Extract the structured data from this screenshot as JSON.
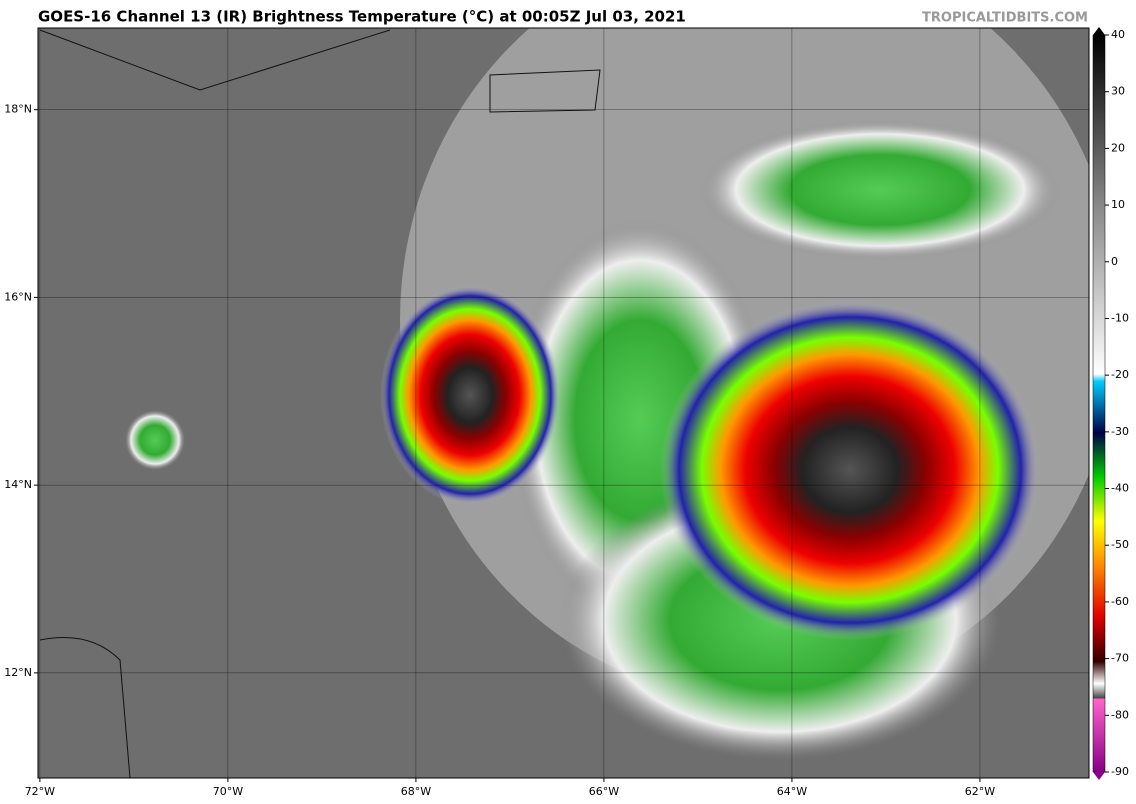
{
  "header": {
    "title": "GOES-16 Channel 13 (IR) Brightness Temperature (°C) at 00:05Z Jul 03, 2021",
    "source": "TROPICALTIDBITS.COM"
  },
  "map": {
    "lonlim": [
      -72.02,
      -60.84
    ],
    "latlim": [
      10.88,
      18.87
    ],
    "lon_ticks": [
      {
        "value": -72,
        "label": "72°W"
      },
      {
        "value": -70,
        "label": "70°W"
      },
      {
        "value": -68,
        "label": "68°W"
      },
      {
        "value": -66,
        "label": "66°W"
      },
      {
        "value": -64,
        "label": "64°W"
      },
      {
        "value": -62,
        "label": "62°W"
      }
    ],
    "lat_ticks": [
      {
        "value": 18,
        "label": "18°N"
      },
      {
        "value": 16,
        "label": "16°N"
      },
      {
        "value": 14,
        "label": "14°N"
      },
      {
        "value": 12,
        "label": "12°N"
      }
    ]
  },
  "colorbar": {
    "lim": [
      -90,
      40
    ],
    "ticks": [
      40,
      30,
      20,
      10,
      0,
      -10,
      -20,
      -30,
      -40,
      -50,
      -60,
      -70,
      -80,
      -90
    ]
  }
}
